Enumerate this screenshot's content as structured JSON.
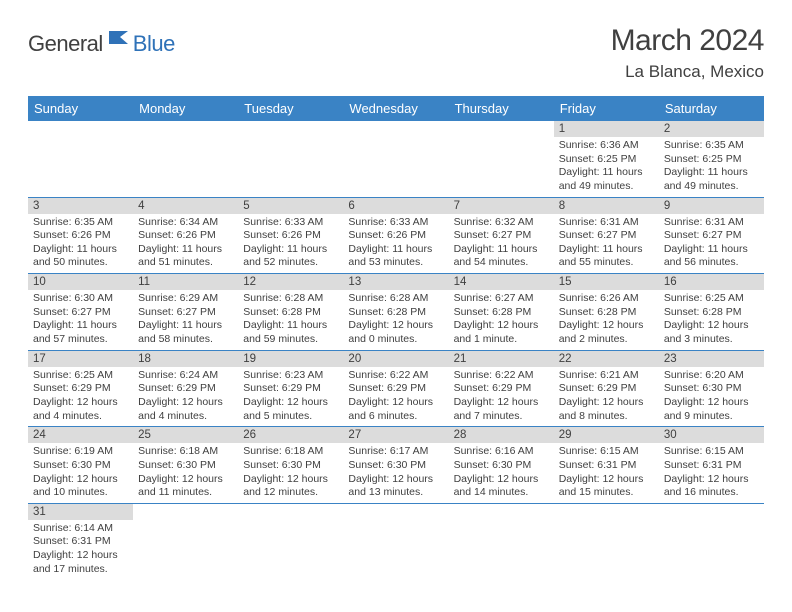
{
  "logo": {
    "text1": "General",
    "text2": "Blue"
  },
  "title": "March 2024",
  "location": "La Blanca, Mexico",
  "colors": {
    "header_bg": "#3a83c5",
    "header_fg": "#ffffff",
    "daynum_bg": "#dcdcdc",
    "rule": "#3a83c5",
    "logo_blue": "#2f72b8",
    "text": "#404040"
  },
  "weekdays": [
    "Sunday",
    "Monday",
    "Tuesday",
    "Wednesday",
    "Thursday",
    "Friday",
    "Saturday"
  ],
  "weeks": [
    [
      null,
      null,
      null,
      null,
      null,
      {
        "n": "1",
        "sr": "Sunrise: 6:36 AM",
        "ss": "Sunset: 6:25 PM",
        "dl": "Daylight: 11 hours and 49 minutes."
      },
      {
        "n": "2",
        "sr": "Sunrise: 6:35 AM",
        "ss": "Sunset: 6:25 PM",
        "dl": "Daylight: 11 hours and 49 minutes."
      }
    ],
    [
      {
        "n": "3",
        "sr": "Sunrise: 6:35 AM",
        "ss": "Sunset: 6:26 PM",
        "dl": "Daylight: 11 hours and 50 minutes."
      },
      {
        "n": "4",
        "sr": "Sunrise: 6:34 AM",
        "ss": "Sunset: 6:26 PM",
        "dl": "Daylight: 11 hours and 51 minutes."
      },
      {
        "n": "5",
        "sr": "Sunrise: 6:33 AM",
        "ss": "Sunset: 6:26 PM",
        "dl": "Daylight: 11 hours and 52 minutes."
      },
      {
        "n": "6",
        "sr": "Sunrise: 6:33 AM",
        "ss": "Sunset: 6:26 PM",
        "dl": "Daylight: 11 hours and 53 minutes."
      },
      {
        "n": "7",
        "sr": "Sunrise: 6:32 AM",
        "ss": "Sunset: 6:27 PM",
        "dl": "Daylight: 11 hours and 54 minutes."
      },
      {
        "n": "8",
        "sr": "Sunrise: 6:31 AM",
        "ss": "Sunset: 6:27 PM",
        "dl": "Daylight: 11 hours and 55 minutes."
      },
      {
        "n": "9",
        "sr": "Sunrise: 6:31 AM",
        "ss": "Sunset: 6:27 PM",
        "dl": "Daylight: 11 hours and 56 minutes."
      }
    ],
    [
      {
        "n": "10",
        "sr": "Sunrise: 6:30 AM",
        "ss": "Sunset: 6:27 PM",
        "dl": "Daylight: 11 hours and 57 minutes."
      },
      {
        "n": "11",
        "sr": "Sunrise: 6:29 AM",
        "ss": "Sunset: 6:27 PM",
        "dl": "Daylight: 11 hours and 58 minutes."
      },
      {
        "n": "12",
        "sr": "Sunrise: 6:28 AM",
        "ss": "Sunset: 6:28 PM",
        "dl": "Daylight: 11 hours and 59 minutes."
      },
      {
        "n": "13",
        "sr": "Sunrise: 6:28 AM",
        "ss": "Sunset: 6:28 PM",
        "dl": "Daylight: 12 hours and 0 minutes."
      },
      {
        "n": "14",
        "sr": "Sunrise: 6:27 AM",
        "ss": "Sunset: 6:28 PM",
        "dl": "Daylight: 12 hours and 1 minute."
      },
      {
        "n": "15",
        "sr": "Sunrise: 6:26 AM",
        "ss": "Sunset: 6:28 PM",
        "dl": "Daylight: 12 hours and 2 minutes."
      },
      {
        "n": "16",
        "sr": "Sunrise: 6:25 AM",
        "ss": "Sunset: 6:28 PM",
        "dl": "Daylight: 12 hours and 3 minutes."
      }
    ],
    [
      {
        "n": "17",
        "sr": "Sunrise: 6:25 AM",
        "ss": "Sunset: 6:29 PM",
        "dl": "Daylight: 12 hours and 4 minutes."
      },
      {
        "n": "18",
        "sr": "Sunrise: 6:24 AM",
        "ss": "Sunset: 6:29 PM",
        "dl": "Daylight: 12 hours and 4 minutes."
      },
      {
        "n": "19",
        "sr": "Sunrise: 6:23 AM",
        "ss": "Sunset: 6:29 PM",
        "dl": "Daylight: 12 hours and 5 minutes."
      },
      {
        "n": "20",
        "sr": "Sunrise: 6:22 AM",
        "ss": "Sunset: 6:29 PM",
        "dl": "Daylight: 12 hours and 6 minutes."
      },
      {
        "n": "21",
        "sr": "Sunrise: 6:22 AM",
        "ss": "Sunset: 6:29 PM",
        "dl": "Daylight: 12 hours and 7 minutes."
      },
      {
        "n": "22",
        "sr": "Sunrise: 6:21 AM",
        "ss": "Sunset: 6:29 PM",
        "dl": "Daylight: 12 hours and 8 minutes."
      },
      {
        "n": "23",
        "sr": "Sunrise: 6:20 AM",
        "ss": "Sunset: 6:30 PM",
        "dl": "Daylight: 12 hours and 9 minutes."
      }
    ],
    [
      {
        "n": "24",
        "sr": "Sunrise: 6:19 AM",
        "ss": "Sunset: 6:30 PM",
        "dl": "Daylight: 12 hours and 10 minutes."
      },
      {
        "n": "25",
        "sr": "Sunrise: 6:18 AM",
        "ss": "Sunset: 6:30 PM",
        "dl": "Daylight: 12 hours and 11 minutes."
      },
      {
        "n": "26",
        "sr": "Sunrise: 6:18 AM",
        "ss": "Sunset: 6:30 PM",
        "dl": "Daylight: 12 hours and 12 minutes."
      },
      {
        "n": "27",
        "sr": "Sunrise: 6:17 AM",
        "ss": "Sunset: 6:30 PM",
        "dl": "Daylight: 12 hours and 13 minutes."
      },
      {
        "n": "28",
        "sr": "Sunrise: 6:16 AM",
        "ss": "Sunset: 6:30 PM",
        "dl": "Daylight: 12 hours and 14 minutes."
      },
      {
        "n": "29",
        "sr": "Sunrise: 6:15 AM",
        "ss": "Sunset: 6:31 PM",
        "dl": "Daylight: 12 hours and 15 minutes."
      },
      {
        "n": "30",
        "sr": "Sunrise: 6:15 AM",
        "ss": "Sunset: 6:31 PM",
        "dl": "Daylight: 12 hours and 16 minutes."
      }
    ],
    [
      {
        "n": "31",
        "sr": "Sunrise: 6:14 AM",
        "ss": "Sunset: 6:31 PM",
        "dl": "Daylight: 12 hours and 17 minutes."
      },
      null,
      null,
      null,
      null,
      null,
      null
    ]
  ]
}
